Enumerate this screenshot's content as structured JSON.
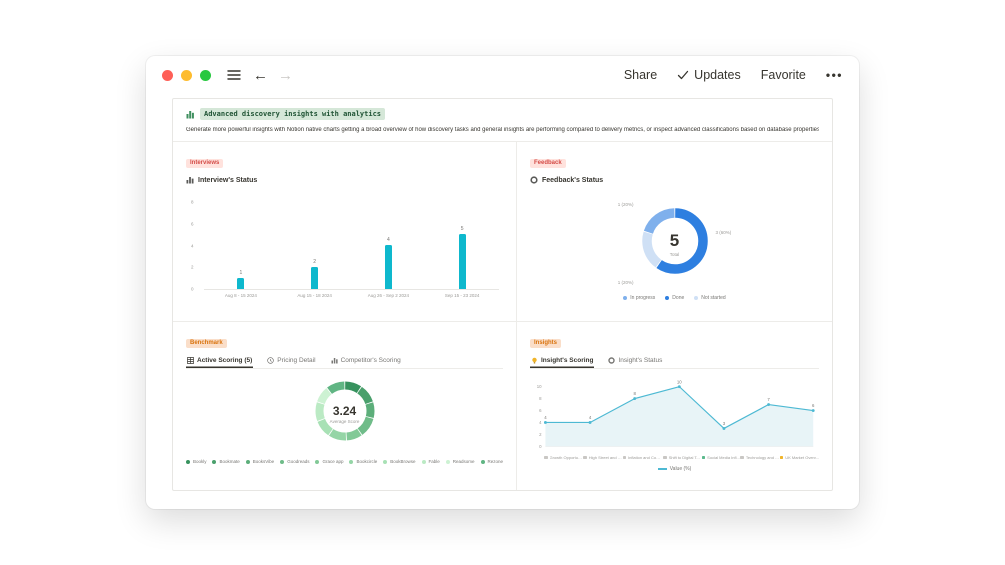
{
  "window": {
    "topbar": {
      "share_label": "Share",
      "updates_label": "Updates",
      "favorite_label": "Favorite",
      "more_label": "•••"
    }
  },
  "page": {
    "title_badge": "Advanced discovery insights with analytics",
    "description": "Generate more powerful insights with Notion native charts getting a broad overview of how discovery tasks and general insights are performing compared to delivery metrics, or inspect advanced classifications based on database properties."
  },
  "sections": {
    "interviews": {
      "badge": "Interviews",
      "chart_title": "Interview's Status"
    },
    "feedback": {
      "badge": "Feedback",
      "chart_title": "Feedback's Status",
      "annotations": {
        "top_left": "1 (20%)",
        "right": "3 (60%)",
        "bottom_left": "1 (20%)"
      }
    },
    "benchmark": {
      "badge": "Benchmark",
      "tabs": [
        {
          "label": "Active Scoring (5)"
        },
        {
          "label": "Pricing Detail"
        },
        {
          "label": "Competitor's Scoring"
        }
      ]
    },
    "insights": {
      "badge": "Insights",
      "tabs": [
        {
          "label": "Insight's Scoring"
        },
        {
          "label": "Insight's Status"
        }
      ]
    }
  },
  "chart_data": [
    {
      "id": "interviews-status",
      "type": "bar",
      "title": "Interview's Status",
      "categories": [
        "Aug 8 - 15 2024",
        "Aug 15 - 18 2024",
        "Aug 26 - Sep 2 2024",
        "Sep 15 - 23 2024"
      ],
      "values": [
        1,
        2,
        4,
        5
      ],
      "ylim": [
        0,
        8
      ],
      "yticks": [
        0,
        2,
        4,
        6,
        8
      ],
      "bar_color": "#0eb8cd"
    },
    {
      "id": "feedback-status",
      "type": "pie",
      "title": "Feedback's Status",
      "center_value": "5",
      "center_label": "Total",
      "slices": [
        {
          "label": "Done",
          "value": 3,
          "pct": "60%",
          "color": "#2e7fe0"
        },
        {
          "label": "Not started",
          "value": 1,
          "pct": "20%",
          "color": "#cfe0f5"
        },
        {
          "label": "In progress",
          "value": 1,
          "pct": "20%",
          "color": "#7fb0ec"
        }
      ],
      "legend": [
        {
          "label": "In progress",
          "color": "#7fb0ec"
        },
        {
          "label": "Done",
          "color": "#2e7fe0"
        },
        {
          "label": "Not started",
          "color": "#cfe0f5"
        }
      ]
    },
    {
      "id": "benchmark-active-scoring",
      "type": "pie",
      "title": "Active Scoring",
      "center_value": "3.24",
      "center_label": "Average Score",
      "slices": [
        {
          "label": "Bookly",
          "value": 3.1,
          "color": "#37925e"
        },
        {
          "label": "Bookmate",
          "value": 3.4,
          "color": "#4aa06c"
        },
        {
          "label": "BooksVibe",
          "value": 3.0,
          "color": "#5cae7a"
        },
        {
          "label": "Goodreads",
          "value": 3.6,
          "color": "#6fbc89"
        },
        {
          "label": "Grace app",
          "value": 2.9,
          "color": "#82c997"
        },
        {
          "label": "Bookcircle",
          "value": 3.3,
          "color": "#95d5a6"
        },
        {
          "label": "BookBrowse",
          "value": 3.2,
          "color": "#a8e1b5"
        },
        {
          "label": "Fable",
          "value": 3.5,
          "color": "#bbeac4"
        },
        {
          "label": "Readsome",
          "value": 3.0,
          "color": "#cdf2d3"
        },
        {
          "label": "Rezone",
          "value": 3.4,
          "color": "#60b583"
        }
      ]
    },
    {
      "id": "insights-scoring",
      "type": "line",
      "title": "Insight's Scoring",
      "legend_label": "Value (%)",
      "categories": [
        {
          "label": "Growth Opportunitie...",
          "icon_color": "#c9c7c4"
        },
        {
          "label": "High Street and Onl...",
          "icon_color": "#c9c7c4"
        },
        {
          "label": "Inflation and Consu...",
          "icon_color": "#c9c7c4"
        },
        {
          "label": "Shift to Digital T...",
          "icon_color": "#c9c7c4"
        },
        {
          "label": "Social Media Infl...",
          "icon_color": "#5bb98c"
        },
        {
          "label": "Technology and Inno...",
          "icon_color": "#c9c7c4"
        },
        {
          "label": "UK Market Overv...",
          "icon_color": "#f0b429"
        }
      ],
      "values": [
        4,
        4,
        8,
        10,
        3,
        7,
        6
      ],
      "ylim": [
        0,
        10
      ],
      "yticks": [
        0,
        2,
        4,
        6,
        8,
        10
      ],
      "line_color": "#4db9d3",
      "area_color": "#e8f4f7"
    }
  ]
}
